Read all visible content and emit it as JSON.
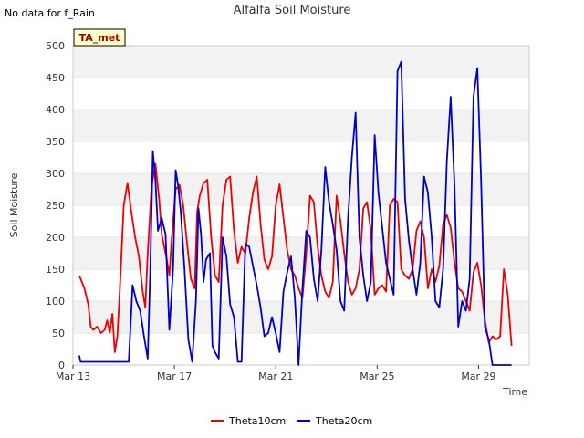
{
  "note": "No data for f_Rain",
  "chart_data": {
    "type": "line",
    "title": "Alfalfa Soil Moisture",
    "xlabel": "Time",
    "ylabel": "Soil Moisture",
    "ylim": [
      0,
      500
    ],
    "xlim": [
      13.0,
      31.0
    ],
    "yticks": [
      0,
      50,
      100,
      150,
      200,
      250,
      300,
      350,
      400,
      450,
      500
    ],
    "xticks": [
      {
        "value": 13,
        "label": "Mar 13"
      },
      {
        "value": 17,
        "label": "Mar 17"
      },
      {
        "value": 21,
        "label": "Mar 21"
      },
      {
        "value": 25,
        "label": "Mar 25"
      },
      {
        "value": 29,
        "label": "Mar 29"
      }
    ],
    "grid": true,
    "legend_position": "bottom",
    "station_label": "TA_met",
    "series": [
      {
        "name": "Theta10cm",
        "color": "#ee0000",
        "x": [
          13.25,
          13.45,
          13.6,
          13.7,
          13.8,
          13.95,
          14.1,
          14.25,
          14.35,
          14.45,
          14.55,
          14.65,
          14.75,
          14.85,
          15.0,
          15.15,
          15.3,
          15.45,
          15.6,
          15.75,
          15.85,
          15.95,
          16.1,
          16.25,
          16.4,
          16.5,
          16.6,
          16.7,
          16.8,
          16.9,
          17.05,
          17.2,
          17.35,
          17.5,
          17.65,
          17.8,
          17.9,
          18.0,
          18.15,
          18.3,
          18.45,
          18.6,
          18.75,
          18.9,
          19.05,
          19.2,
          19.35,
          19.5,
          19.65,
          19.8,
          19.95,
          20.1,
          20.25,
          20.4,
          20.55,
          20.7,
          20.85,
          21.0,
          21.15,
          21.3,
          21.45,
          21.6,
          21.75,
          21.9,
          22.05,
          22.2,
          22.35,
          22.5,
          22.65,
          22.8,
          22.95,
          23.1,
          23.25,
          23.4,
          23.55,
          23.7,
          23.85,
          24.0,
          24.15,
          24.3,
          24.45,
          24.6,
          24.75,
          24.9,
          25.05,
          25.2,
          25.35,
          25.5,
          25.65,
          25.8,
          25.95,
          26.1,
          26.25,
          26.4,
          26.55,
          26.7,
          26.85,
          27.0,
          27.15,
          27.3,
          27.45,
          27.6,
          27.75,
          27.9,
          28.05,
          28.2,
          28.35,
          28.5,
          28.65,
          28.8,
          28.95,
          29.1,
          29.25,
          29.4,
          29.55,
          29.7,
          29.85,
          30.0,
          30.15,
          30.3
        ],
        "y": [
          140,
          120,
          95,
          60,
          55,
          60,
          50,
          55,
          70,
          50,
          80,
          20,
          45,
          120,
          250,
          285,
          240,
          200,
          170,
          115,
          90,
          175,
          280,
          315,
          260,
          205,
          185,
          165,
          140,
          200,
          275,
          282,
          250,
          190,
          135,
          120,
          240,
          265,
          285,
          290,
          200,
          140,
          130,
          250,
          290,
          295,
          210,
          160,
          185,
          175,
          230,
          270,
          295,
          220,
          165,
          150,
          170,
          250,
          283,
          230,
          180,
          150,
          140,
          120,
          105,
          175,
          265,
          255,
          185,
          140,
          115,
          105,
          130,
          265,
          225,
          175,
          130,
          110,
          120,
          150,
          245,
          255,
          210,
          110,
          120,
          125,
          115,
          250,
          260,
          255,
          150,
          140,
          135,
          150,
          210,
          225,
          200,
          120,
          150,
          130,
          155,
          220,
          235,
          215,
          160,
          120,
          115,
          100,
          85,
          145,
          160,
          125,
          70,
          35,
          45,
          40,
          45,
          150,
          110,
          30
        ]
      },
      {
        "name": "Theta20cm",
        "color": "#0000cc",
        "x": [
          13.25,
          13.3,
          15.2,
          15.35,
          15.5,
          15.65,
          15.8,
          15.95,
          16.05,
          16.15,
          16.25,
          16.35,
          16.5,
          16.65,
          16.8,
          16.95,
          17.05,
          17.15,
          17.25,
          17.4,
          17.55,
          17.7,
          17.85,
          17.95,
          18.05,
          18.15,
          18.25,
          18.4,
          18.5,
          18.6,
          18.75,
          18.9,
          19.05,
          19.2,
          19.35,
          19.5,
          19.65,
          19.8,
          19.95,
          20.1,
          20.25,
          20.4,
          20.55,
          20.7,
          20.85,
          21.0,
          21.15,
          21.3,
          21.45,
          21.6,
          21.75,
          21.9,
          22.05,
          22.2,
          22.35,
          22.5,
          22.65,
          22.8,
          22.95,
          23.1,
          23.25,
          23.4,
          23.55,
          23.7,
          23.85,
          24.0,
          24.15,
          24.3,
          24.45,
          24.6,
          24.75,
          24.9,
          25.05,
          25.2,
          25.35,
          25.5,
          25.65,
          25.8,
          25.95,
          26.1,
          26.25,
          26.4,
          26.55,
          26.7,
          26.85,
          27.0,
          27.15,
          27.3,
          27.45,
          27.6,
          27.75,
          27.9,
          28.05,
          28.2,
          28.35,
          28.5,
          28.65,
          28.8,
          28.95,
          29.1,
          29.25,
          29.4,
          29.55,
          29.7,
          29.85,
          30.0,
          30.15,
          30.3
        ],
        "y": [
          15,
          5,
          5,
          125,
          100,
          85,
          45,
          10,
          150,
          335,
          290,
          210,
          230,
          205,
          55,
          150,
          305,
          280,
          240,
          150,
          40,
          5,
          100,
          245,
          205,
          130,
          165,
          175,
          30,
          20,
          10,
          200,
          170,
          95,
          75,
          5,
          5,
          190,
          185,
          155,
          125,
          90,
          45,
          50,
          75,
          50,
          20,
          115,
          145,
          170,
          105,
          0,
          120,
          210,
          200,
          135,
          100,
          180,
          310,
          255,
          220,
          180,
          100,
          85,
          230,
          325,
          395,
          200,
          140,
          100,
          130,
          360,
          270,
          215,
          160,
          135,
          110,
          460,
          475,
          260,
          195,
          150,
          110,
          160,
          295,
          270,
          200,
          100,
          90,
          150,
          320,
          420,
          280,
          60,
          100,
          85,
          135,
          420,
          465,
          290,
          60,
          40,
          0,
          0,
          0,
          0,
          0,
          0
        ]
      }
    ]
  }
}
